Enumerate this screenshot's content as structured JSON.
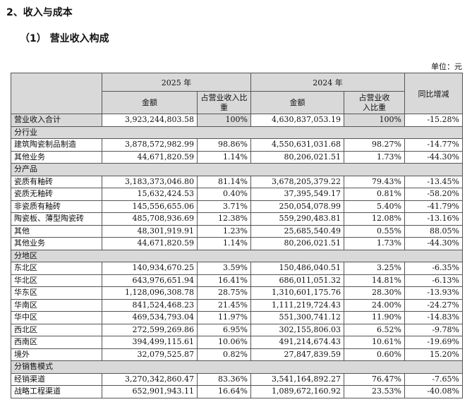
{
  "section_title": "2、收入与成本",
  "subsection_title": "（1） 营业收入构成",
  "unit": "单位：元",
  "header": {
    "year_2025": "2025 年",
    "year_2024": "2024 年",
    "amount": "金额",
    "share": "占营业收入比重",
    "yoy": "同比增减"
  },
  "total": {
    "label": "营业收入合计",
    "a2025": "3,923,244,803.58",
    "p2025": "100%",
    "a2024": "4,630,837,053.19",
    "p2024": "100%",
    "yoy": "-15.28%"
  },
  "groups": [
    {
      "title": "分行业",
      "rows": [
        {
          "label": "建筑陶瓷制品制造",
          "a2025": "3,878,572,982.99",
          "p2025": "98.86%",
          "a2024": "4,550,631,031.68",
          "p2024": "98.27%",
          "yoy": "-14.77%"
        },
        {
          "label": "其他业务",
          "a2025": "44,671,820.59",
          "p2025": "1.14%",
          "a2024": "80,206,021.51",
          "p2024": "1.73%",
          "yoy": "-44.30%"
        }
      ]
    },
    {
      "title": "分产品",
      "rows": [
        {
          "label": "瓷质有釉砖",
          "a2025": "3,183,373,046.80",
          "p2025": "81.14%",
          "a2024": "3,678,205,379.22",
          "p2024": "79.43%",
          "yoy": "-13.45%"
        },
        {
          "label": "瓷质无釉砖",
          "a2025": "15,632,424.53",
          "p2025": "0.40%",
          "a2024": "37,395,549.17",
          "p2024": "0.81%",
          "yoy": "-58.20%"
        },
        {
          "label": "非瓷质有釉砖",
          "a2025": "145,556,655.06",
          "p2025": "3.71%",
          "a2024": "250,054,078.99",
          "p2024": "5.40%",
          "yoy": "-41.79%"
        },
        {
          "label": "陶瓷板、薄型陶瓷砖",
          "a2025": "485,708,936.69",
          "p2025": "12.38%",
          "a2024": "559,290,483.81",
          "p2024": "12.08%",
          "yoy": "-13.16%"
        },
        {
          "label": "其他",
          "a2025": "48,301,919.91",
          "p2025": "1.23%",
          "a2024": "25,685,540.49",
          "p2024": "0.55%",
          "yoy": "88.05%"
        },
        {
          "label": "其他业务",
          "a2025": "44,671,820.59",
          "p2025": "1.14%",
          "a2024": "80,206,021.51",
          "p2024": "1.73%",
          "yoy": "-44.30%"
        }
      ]
    },
    {
      "title": "分地区",
      "rows": [
        {
          "label": "东北区",
          "a2025": "140,934,670.25",
          "p2025": "3.59%",
          "a2024": "150,486,040.51",
          "p2024": "3.25%",
          "yoy": "-6.35%"
        },
        {
          "label": "华北区",
          "a2025": "643,976,651.94",
          "p2025": "16.41%",
          "a2024": "686,011,051.32",
          "p2024": "14.81%",
          "yoy": "-6.13%"
        },
        {
          "label": "华东区",
          "a2025": "1,128,096,308.78",
          "p2025": "28.75%",
          "a2024": "1,310,601,175.76",
          "p2024": "28.30%",
          "yoy": "-13.93%"
        },
        {
          "label": "华南区",
          "a2025": "841,524,468.23",
          "p2025": "21.45%",
          "a2024": "1,111,219,724.43",
          "p2024": "24.00%",
          "yoy": "-24.27%"
        },
        {
          "label": "华中区",
          "a2025": "469,534,793.04",
          "p2025": "11.97%",
          "a2024": "551,300,741.12",
          "p2024": "11.90%",
          "yoy": "-14.83%"
        },
        {
          "label": "西北区",
          "a2025": "272,599,269.86",
          "p2025": "6.95%",
          "a2024": "302,155,806.03",
          "p2024": "6.52%",
          "yoy": "-9.78%"
        },
        {
          "label": "西南区",
          "a2025": "394,499,115.61",
          "p2025": "10.06%",
          "a2024": "491,214,674.43",
          "p2024": "10.61%",
          "yoy": "-19.69%"
        },
        {
          "label": "境外",
          "a2025": "32,079,525.87",
          "p2025": "0.82%",
          "a2024": "27,847,839.59",
          "p2024": "0.60%",
          "yoy": "15.20%"
        }
      ]
    },
    {
      "title": "分销售模式",
      "rows": [
        {
          "label": "经销渠道",
          "a2025": "3,270,342,860.47",
          "p2025": "83.36%",
          "a2024": "3,541,164,892.27",
          "p2024": "76.47%",
          "yoy": "-7.65%"
        },
        {
          "label": "战略工程渠道",
          "a2025": "652,901,943.11",
          "p2025": "16.64%",
          "a2024": "1,089,672,160.92",
          "p2024": "23.53%",
          "yoy": "-40.08%"
        }
      ]
    }
  ]
}
